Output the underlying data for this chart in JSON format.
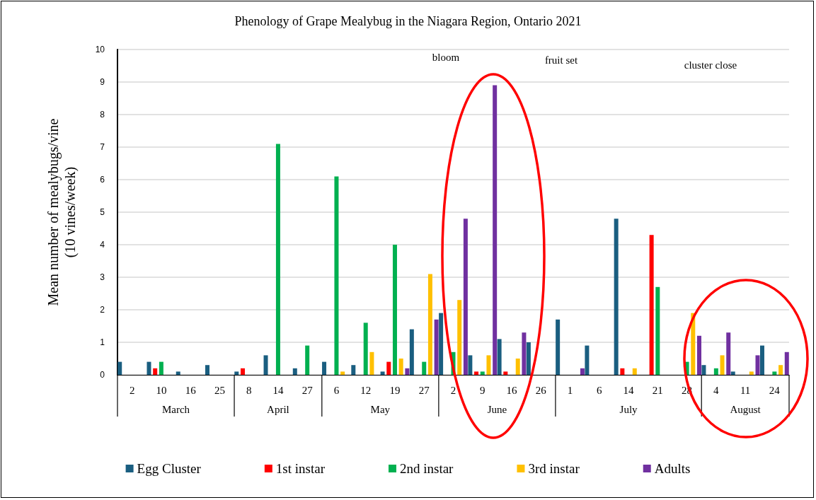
{
  "chart_data": {
    "type": "bar",
    "title": "Phenology of Grape Mealybug in the Niagara Region, Ontario 2021",
    "ylabel": "Mean number of mealybugs/vine\n(10 vines/week)",
    "categories": [
      "2",
      "10",
      "16",
      "25",
      "8",
      "14",
      "27",
      "6",
      "12",
      "19",
      "27",
      "2",
      "9",
      "16",
      "26",
      "1",
      "6",
      "14",
      "21",
      "28",
      "4",
      "11",
      "24"
    ],
    "annotations": [
      "bloom",
      "fruit set",
      "cluster close",
      "March",
      "April",
      "May",
      "June",
      "July",
      "August"
    ],
    "series": [
      {
        "name": "Egg Cluster",
        "color": "#1a5e80",
        "values": [
          0.4,
          0.4,
          0.1,
          0.3,
          0.1,
          0.6,
          0.2,
          0.4,
          0.3,
          0.1,
          1.4,
          1.9,
          0.6,
          1.1,
          1.0,
          1.7,
          0.9,
          4.8,
          0,
          0,
          0.3,
          0.1,
          0.9
        ]
      },
      {
        "name": "1st instar",
        "color": "#ff0000",
        "values": [
          0,
          0.2,
          0,
          0,
          0.2,
          0,
          0,
          0,
          0,
          0.4,
          0,
          0,
          0.1,
          0.1,
          0,
          0,
          0,
          0.2,
          4.3,
          0,
          0,
          0,
          0
        ]
      },
      {
        "name": "2nd instar",
        "color": "#00b050",
        "values": [
          0,
          0.4,
          0,
          0,
          0,
          7.1,
          0.9,
          6.1,
          1.6,
          4.0,
          0.4,
          0.7,
          0.1,
          0,
          0,
          0,
          0,
          0,
          2.7,
          0.4,
          0.2,
          0,
          0.1
        ]
      },
      {
        "name": "3rd instar",
        "color": "#ffc000",
        "values": [
          0,
          0,
          0,
          0,
          0,
          0,
          0,
          0.1,
          0.7,
          0.5,
          3.1,
          2.3,
          0.6,
          0.5,
          0,
          0,
          0,
          0.2,
          0,
          1.9,
          0.6,
          0.1,
          0.3
        ]
      },
      {
        "name": "Adults",
        "color": "#7030a0",
        "values": [
          0,
          0,
          0,
          0,
          0,
          0,
          0,
          0,
          0,
          0.2,
          1.7,
          4.8,
          8.9,
          1.3,
          0,
          0.2,
          0,
          0,
          0,
          1.2,
          1.3,
          0.6,
          0.7
        ]
      }
    ],
    "ylim": [
      0,
      10
    ],
    "yticks": [
      0,
      1,
      2,
      3,
      4,
      5,
      6,
      7,
      8,
      9,
      10
    ],
    "grid": "y",
    "legend": "bottom"
  }
}
